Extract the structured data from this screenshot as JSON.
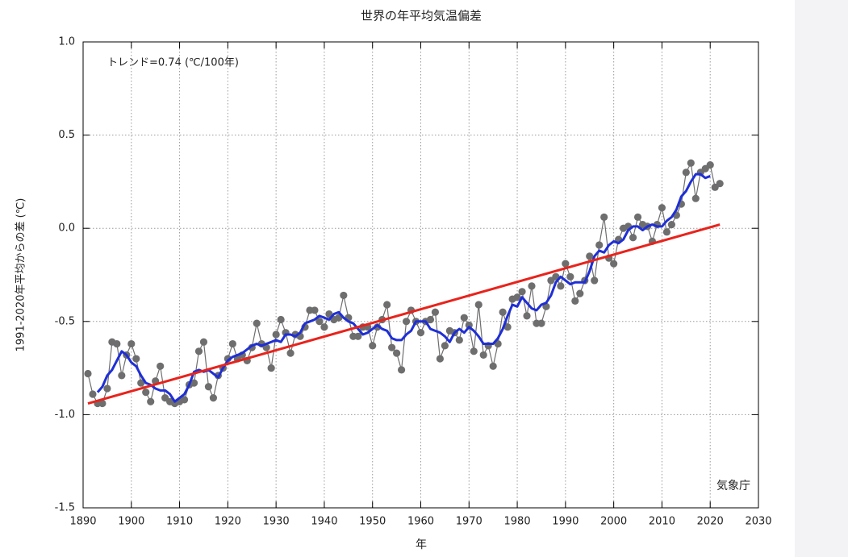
{
  "chart_data": {
    "type": "line",
    "title": "世界の年平均気温偏差",
    "xlabel": "年",
    "ylabel": "1991-2020年平均からの差 (℃)",
    "annotations": [
      "トレンド=0.74 (℃/100年)",
      "気象庁"
    ],
    "x": [
      1891,
      1892,
      1893,
      1894,
      1895,
      1896,
      1897,
      1898,
      1899,
      1900,
      1901,
      1902,
      1903,
      1904,
      1905,
      1906,
      1907,
      1908,
      1909,
      1910,
      1911,
      1912,
      1913,
      1914,
      1915,
      1916,
      1917,
      1918,
      1919,
      1920,
      1921,
      1922,
      1923,
      1924,
      1925,
      1926,
      1927,
      1928,
      1929,
      1930,
      1931,
      1932,
      1933,
      1934,
      1935,
      1936,
      1937,
      1938,
      1939,
      1940,
      1941,
      1942,
      1943,
      1944,
      1945,
      1946,
      1947,
      1948,
      1949,
      1950,
      1951,
      1952,
      1953,
      1954,
      1955,
      1956,
      1957,
      1958,
      1959,
      1960,
      1961,
      1962,
      1963,
      1964,
      1965,
      1966,
      1967,
      1968,
      1969,
      1970,
      1971,
      1972,
      1973,
      1974,
      1975,
      1976,
      1977,
      1978,
      1979,
      1980,
      1981,
      1982,
      1983,
      1984,
      1985,
      1986,
      1987,
      1988,
      1989,
      1990,
      1991,
      1992,
      1993,
      1994,
      1995,
      1996,
      1997,
      1998,
      1999,
      2000,
      2001,
      2002,
      2003,
      2004,
      2005,
      2006,
      2007,
      2008,
      2009,
      2010,
      2011,
      2012,
      2013,
      2014,
      2015,
      2016,
      2017,
      2018,
      2019,
      2020,
      2021,
      2022
    ],
    "series": [
      {
        "color": "#6e6e6e",
        "markers": true,
        "values": [
          -0.78,
          -0.89,
          -0.94,
          -0.94,
          -0.86,
          -0.61,
          -0.62,
          -0.79,
          -0.68,
          -0.62,
          -0.7,
          -0.83,
          -0.88,
          -0.93,
          -0.82,
          -0.74,
          -0.91,
          -0.93,
          -0.94,
          -0.93,
          -0.92,
          -0.84,
          -0.83,
          -0.66,
          -0.61,
          -0.85,
          -0.91,
          -0.79,
          -0.75,
          -0.7,
          -0.62,
          -0.7,
          -0.68,
          -0.71,
          -0.64,
          -0.51,
          -0.62,
          -0.64,
          -0.75,
          -0.57,
          -0.49,
          -0.56,
          -0.67,
          -0.57,
          -0.58,
          -0.53,
          -0.44,
          -0.44,
          -0.5,
          -0.53,
          -0.46,
          -0.49,
          -0.48,
          -0.36,
          -0.48,
          -0.58,
          -0.58,
          -0.53,
          -0.53,
          -0.63,
          -0.53,
          -0.49,
          -0.41,
          -0.64,
          -0.67,
          -0.76,
          -0.5,
          -0.44,
          -0.5,
          -0.56,
          -0.5,
          -0.49,
          -0.45,
          -0.7,
          -0.63,
          -0.55,
          -0.56,
          -0.6,
          -0.48,
          -0.52,
          -0.66,
          -0.41,
          -0.68,
          -0.63,
          -0.74,
          -0.62,
          -0.45,
          -0.53,
          -0.38,
          -0.37,
          -0.34,
          -0.47,
          -0.31,
          -0.51,
          -0.51,
          -0.42,
          -0.28,
          -0.26,
          -0.31,
          -0.19,
          -0.26,
          -0.39,
          -0.35,
          -0.28,
          -0.15,
          -0.28,
          -0.09,
          0.06,
          -0.16,
          -0.19,
          -0.06,
          0.0,
          0.01,
          -0.05,
          0.06,
          0.02,
          0.01,
          -0.07,
          0.02,
          0.11,
          -0.02,
          0.02,
          0.07,
          0.13,
          0.3,
          0.35,
          0.16,
          0.3,
          0.32,
          0.34,
          0.22,
          0.24
        ]
      },
      {
        "color": "#1f2fd6",
        "markers": false,
        "values": [
          null,
          null,
          -0.88,
          -0.85,
          -0.79,
          -0.76,
          -0.71,
          -0.66,
          -0.68,
          -0.72,
          -0.74,
          -0.79,
          -0.83,
          -0.84,
          -0.86,
          -0.87,
          -0.87,
          -0.89,
          -0.93,
          -0.91,
          -0.89,
          -0.84,
          -0.77,
          -0.76,
          -0.77,
          -0.76,
          -0.78,
          -0.8,
          -0.75,
          -0.71,
          -0.69,
          -0.68,
          -0.67,
          -0.65,
          -0.63,
          -0.62,
          -0.63,
          -0.62,
          -0.61,
          -0.6,
          -0.61,
          -0.57,
          -0.57,
          -0.58,
          -0.56,
          -0.51,
          -0.5,
          -0.49,
          -0.47,
          -0.48,
          -0.49,
          -0.46,
          -0.45,
          -0.48,
          -0.5,
          -0.51,
          -0.54,
          -0.57,
          -0.56,
          -0.54,
          -0.52,
          -0.54,
          -0.55,
          -0.59,
          -0.6,
          -0.6,
          -0.57,
          -0.55,
          -0.5,
          -0.5,
          -0.5,
          -0.54,
          -0.55,
          -0.56,
          -0.58,
          -0.61,
          -0.56,
          -0.54,
          -0.56,
          -0.53,
          -0.55,
          -0.58,
          -0.62,
          -0.62,
          -0.62,
          -0.59,
          -0.54,
          -0.47,
          -0.41,
          -0.42,
          -0.37,
          -0.4,
          -0.43,
          -0.44,
          -0.41,
          -0.4,
          -0.36,
          -0.29,
          -0.26,
          -0.28,
          -0.3,
          -0.29,
          -0.29,
          -0.29,
          -0.23,
          -0.15,
          -0.12,
          -0.13,
          -0.09,
          -0.07,
          -0.08,
          -0.06,
          -0.01,
          0.01,
          0.01,
          -0.01,
          0.01,
          0.02,
          0.01,
          0.01,
          0.04,
          0.06,
          0.1,
          0.17,
          0.2,
          0.25,
          0.29,
          0.29,
          0.27,
          0.28,
          null,
          null
        ]
      },
      {
        "color": "#e8231c",
        "markers": false,
        "x": [
          1891,
          2022
        ],
        "values": [
          -0.94,
          0.02
        ]
      }
    ],
    "xlim": [
      1890,
      2030
    ],
    "xticks": [
      1890,
      1900,
      1910,
      1920,
      1930,
      1940,
      1950,
      1960,
      1970,
      1980,
      1990,
      2000,
      2010,
      2020,
      2030
    ],
    "ylim": [
      -1.5,
      1.0
    ],
    "yticks": [
      -1.5,
      {
        "value": -1.0,
        "label": "-1.0"
      },
      -0.5,
      {
        "value": 0.0,
        "label": "0.0"
      },
      0.5,
      {
        "value": 1.0,
        "label": "1.0"
      }
    ],
    "grid": true
  }
}
